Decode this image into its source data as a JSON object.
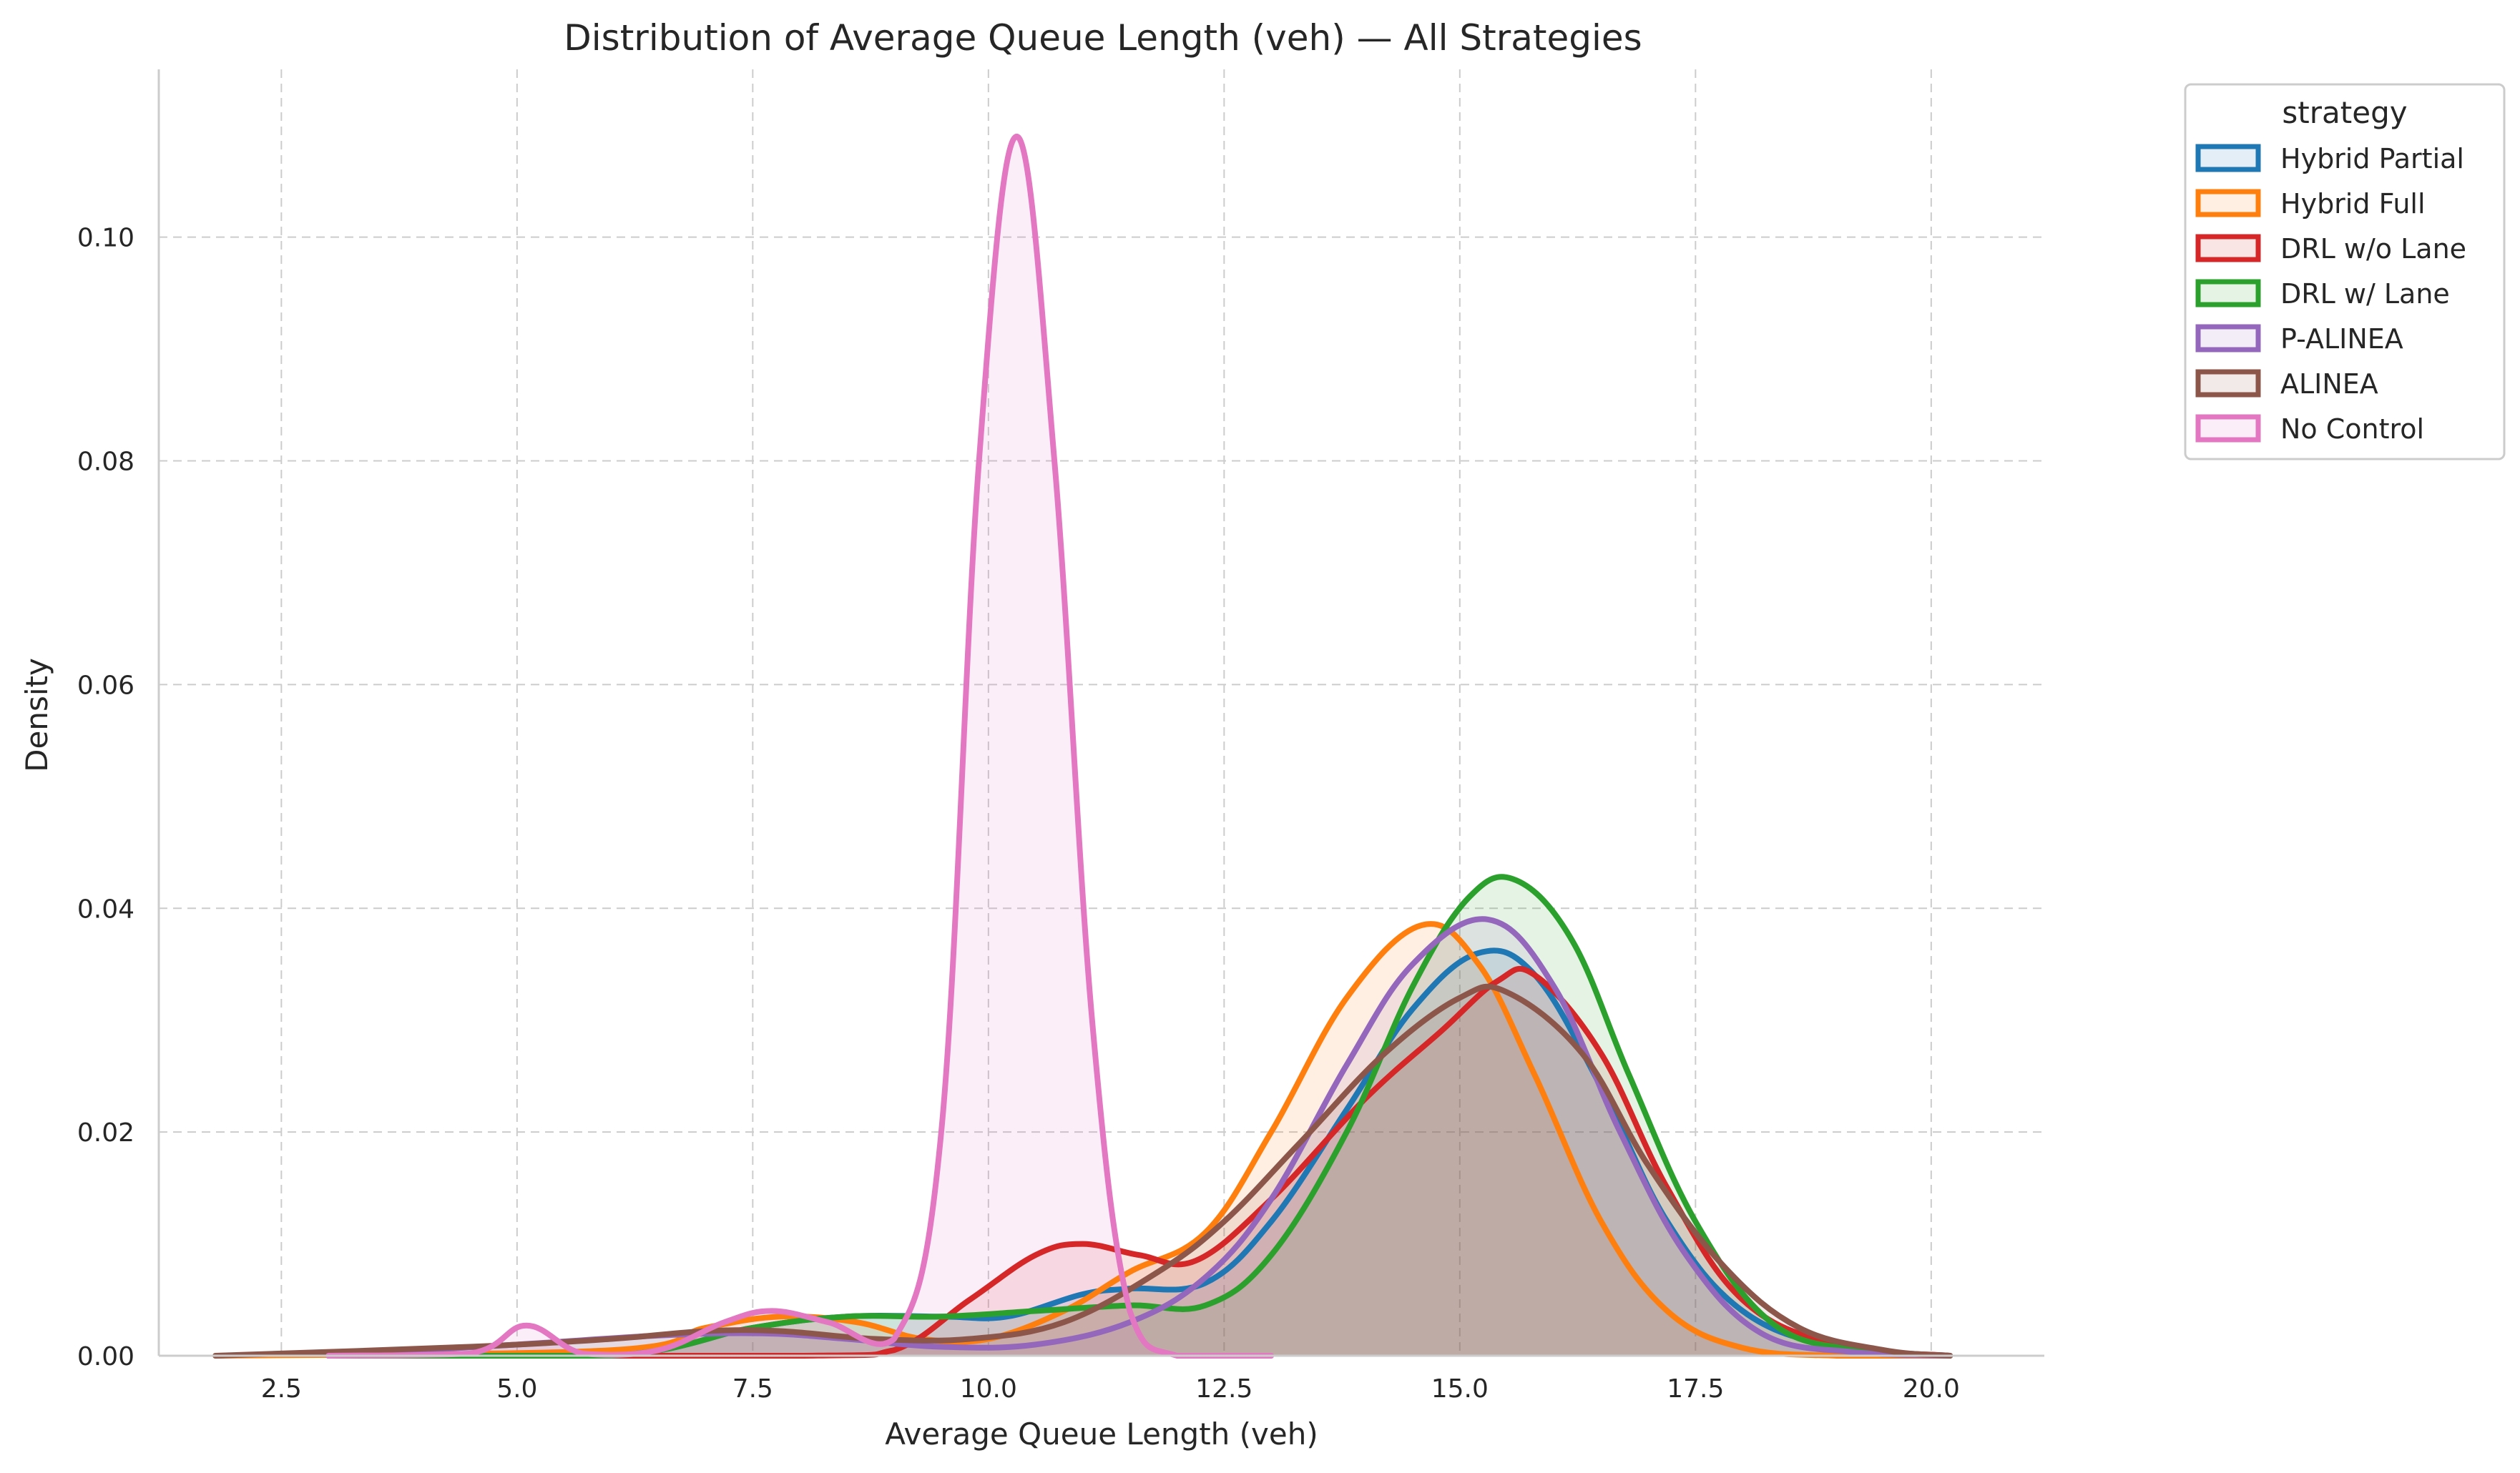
{
  "chart_data": {
    "type": "area",
    "title": "Distribution of Average Queue Length (veh) — All Strategies",
    "xlabel": "Average Queue Length (veh)",
    "ylabel": "Density",
    "xlim": [
      1.2,
      21.2
    ],
    "ylim": [
      0,
      0.115
    ],
    "x_ticks": [
      2.5,
      5.0,
      7.5,
      10.0,
      12.5,
      15.0,
      17.5,
      20.0
    ],
    "x_tick_labels": [
      "2.5",
      "5.0",
      "7.5",
      "10.0",
      "12.5",
      "15.0",
      "17.5",
      "20.0"
    ],
    "y_ticks": [
      0.0,
      0.02,
      0.04,
      0.06,
      0.08,
      0.1
    ],
    "y_tick_labels": [
      "0.00",
      "0.02",
      "0.04",
      "0.06",
      "0.08",
      "0.10"
    ],
    "grid": true,
    "legend": {
      "title": "strategy",
      "placement": "upper right, outside plot"
    },
    "series": [
      {
        "name": "Hybrid Partial",
        "color": "#1f77b4",
        "x": [
          3.0,
          6.0,
          7.5,
          8.5,
          9.5,
          10.2,
          11.0,
          11.5,
          12.3,
          13.0,
          13.8,
          14.5,
          15.2,
          15.8,
          16.5,
          17.2,
          18.0,
          19.0,
          20.2
        ],
        "y": [
          0.0,
          0.0,
          0.0025,
          0.0035,
          0.0035,
          0.0035,
          0.0055,
          0.006,
          0.0065,
          0.012,
          0.022,
          0.031,
          0.036,
          0.034,
          0.024,
          0.012,
          0.004,
          0.0008,
          0.0
        ]
      },
      {
        "name": "Hybrid Full",
        "color": "#ff7f0e",
        "x": [
          1.8,
          6.0,
          7.0,
          7.8,
          8.6,
          9.3,
          10.0,
          10.8,
          11.5,
          12.3,
          13.0,
          13.8,
          14.6,
          15.2,
          15.8,
          16.5,
          17.2,
          18.0,
          19.0,
          20.2
        ],
        "y": [
          0.0,
          0.0005,
          0.0025,
          0.0035,
          0.003,
          0.0015,
          0.0015,
          0.004,
          0.0075,
          0.011,
          0.02,
          0.032,
          0.0385,
          0.035,
          0.025,
          0.012,
          0.004,
          0.0007,
          0.0,
          0.0
        ]
      },
      {
        "name": "DRL w/o Lane",
        "color": "#d62728",
        "x": [
          3.0,
          8.0,
          9.0,
          9.8,
          10.5,
          11.0,
          11.6,
          12.2,
          13.0,
          14.0,
          14.8,
          15.4,
          15.8,
          16.5,
          17.2,
          18.0,
          19.0,
          20.2
        ],
        "y": [
          0.0,
          0.0,
          0.0005,
          0.005,
          0.009,
          0.01,
          0.009,
          0.0085,
          0.014,
          0.023,
          0.029,
          0.0335,
          0.034,
          0.027,
          0.015,
          0.005,
          0.001,
          0.0
        ]
      },
      {
        "name": "DRL w/ Lane",
        "color": "#2ca02c",
        "x": [
          3.0,
          6.0,
          7.5,
          8.5,
          9.5,
          10.5,
          11.5,
          12.3,
          13.0,
          13.8,
          14.5,
          15.1,
          15.6,
          16.2,
          16.8,
          17.5,
          18.3,
          19.2,
          20.2
        ],
        "y": [
          0.0,
          0.0,
          0.0025,
          0.0035,
          0.0035,
          0.004,
          0.0045,
          0.0045,
          0.009,
          0.02,
          0.033,
          0.041,
          0.0425,
          0.037,
          0.025,
          0.012,
          0.003,
          0.0005,
          0.0
        ]
      },
      {
        "name": "P-ALINEA",
        "color": "#9467bd",
        "x": [
          3.0,
          5.0,
          6.5,
          7.6,
          8.5,
          9.5,
          10.5,
          11.5,
          12.3,
          13.0,
          13.8,
          14.5,
          15.3,
          16.0,
          16.7,
          17.4,
          18.2,
          19.2,
          20.2
        ],
        "y": [
          0.0,
          0.001,
          0.0018,
          0.002,
          0.0015,
          0.0008,
          0.001,
          0.003,
          0.007,
          0.014,
          0.026,
          0.035,
          0.039,
          0.033,
          0.02,
          0.009,
          0.002,
          0.0003,
          0.0
        ]
      },
      {
        "name": "ALINEA",
        "color": "#8c564b",
        "x": [
          1.8,
          4.5,
          6.0,
          7.0,
          7.8,
          8.8,
          9.8,
          10.8,
          11.8,
          12.5,
          13.3,
          14.2,
          15.0,
          15.5,
          16.3,
          17.0,
          17.8,
          18.6,
          19.5,
          20.2
        ],
        "y": [
          0.0,
          0.0008,
          0.0015,
          0.0022,
          0.0022,
          0.0015,
          0.0015,
          0.003,
          0.0075,
          0.012,
          0.019,
          0.027,
          0.032,
          0.0325,
          0.027,
          0.017,
          0.008,
          0.0025,
          0.0005,
          0.0
        ]
      },
      {
        "name": "No Control",
        "color": "#e377c2",
        "x": [
          3.0,
          4.5,
          5.1,
          5.7,
          6.5,
          7.2,
          7.7,
          8.3,
          9.0,
          9.5,
          9.9,
          10.3,
          10.7,
          11.1,
          11.5,
          12.0,
          13.0
        ],
        "y": [
          0.0,
          0.0002,
          0.0027,
          0.0002,
          0.0005,
          0.003,
          0.004,
          0.003,
          0.0015,
          0.02,
          0.08,
          0.109,
          0.08,
          0.03,
          0.004,
          0.0,
          0.0
        ]
      }
    ]
  }
}
